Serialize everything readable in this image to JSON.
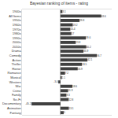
{
  "chart_data": {
    "type": "bar",
    "orientation": "horizontal",
    "title": "Bayesian ranking of items - rating",
    "categories": [
      "1940s",
      "All Items",
      "1950s",
      "1960s",
      "1970s",
      "1980s",
      "1990s",
      "2000s",
      "2010s",
      "Drama",
      "Comedy",
      "Action",
      "Thriller",
      "Horror",
      "Romance",
      "Musical",
      "Western",
      "War",
      "Crime",
      "Family",
      "Sci-Fi",
      "Documentary",
      "Animation",
      "Fantasy"
    ],
    "values": [
      3.1,
      63.6,
      29.8,
      19.2,
      15.4,
      17.0,
      39.6,
      23.8,
      40.2,
      35.9,
      56.7,
      42.1,
      33.5,
      26.9,
      7.2,
      2.1,
      -3.4,
      18.6,
      11.9,
      9.3,
      12.8,
      -45.2,
      13.1,
      5.0
    ],
    "color": "#404040",
    "xlim": [
      -60,
      80
    ],
    "data_labels": true,
    "tick_labels": "y",
    "grid": false
  }
}
